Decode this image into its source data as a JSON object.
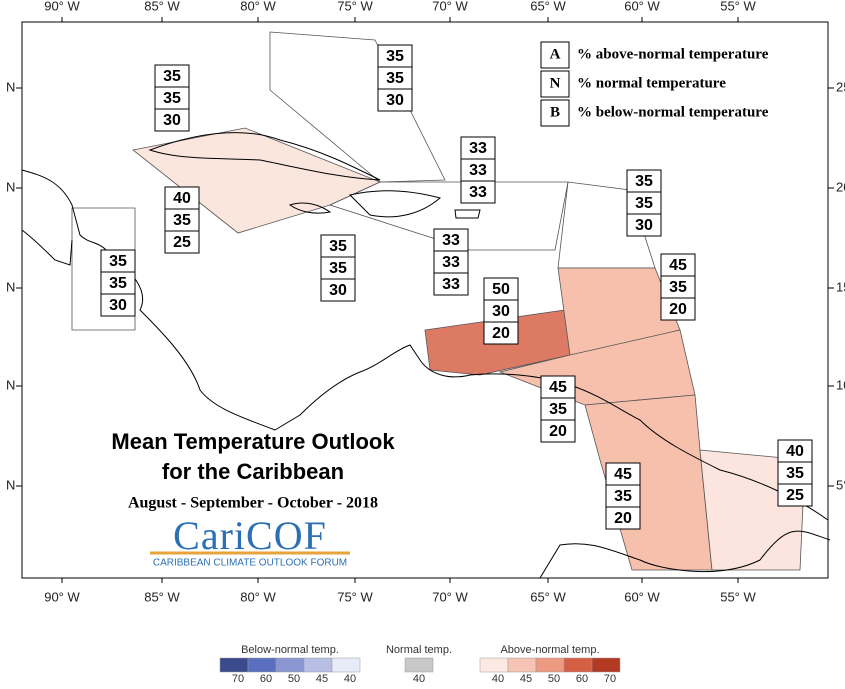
{
  "map": {
    "title": "Mean Temperature Outlook",
    "subtitle": "for the Caribbean",
    "period": "August - September - October - 2018",
    "logo": "CariCOF",
    "logo_caption": "CARIBBEAN CLIMATE OUTLOOK FORUM",
    "lon_labels": [
      "90° W",
      "85° W",
      "80° W",
      "75° W",
      "70° W",
      "65° W",
      "60° W",
      "55° W"
    ],
    "lat_labels_left": [
      "N",
      "N",
      "N",
      "N",
      "N"
    ],
    "lat_labels_right": [
      "25",
      "20",
      "15",
      "10",
      "5°"
    ],
    "key": [
      {
        "letter": "A",
        "text": "% above-normal temperature"
      },
      {
        "letter": "N",
        "text": "% normal temperature"
      },
      {
        "letter": "B",
        "text": "% below-normal temperature"
      }
    ],
    "forecasts": [
      [
        35,
        35,
        30
      ],
      [
        35,
        35,
        30
      ],
      [
        33,
        33,
        33
      ],
      [
        35,
        35,
        30
      ],
      [
        40,
        35,
        25
      ],
      [
        35,
        35,
        30
      ],
      [
        33,
        33,
        33
      ],
      [
        35,
        35,
        30
      ],
      [
        45,
        35,
        20
      ],
      [
        50,
        30,
        20
      ],
      [
        45,
        35,
        20
      ],
      [
        45,
        35,
        20
      ],
      [
        40,
        35,
        25
      ]
    ],
    "colorbar": {
      "below": {
        "title": "Below-normal temp.",
        "ticks": [
          70,
          60,
          50,
          45,
          40
        ]
      },
      "normal": {
        "title": "Normal temp.",
        "ticks": [
          40
        ]
      },
      "above": {
        "title": "Above-normal temp.",
        "ticks": [
          40,
          45,
          50,
          60,
          70
        ]
      }
    }
  }
}
